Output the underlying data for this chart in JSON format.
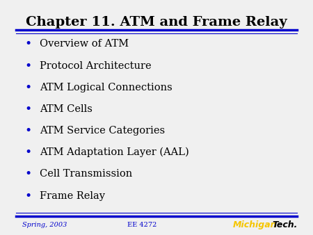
{
  "title": "Chapter 11. ATM and Frame Relay",
  "title_fontsize": 14,
  "title_color": "#000000",
  "bullet_items": [
    "Overview of ATM",
    "Protocol Architecture",
    "ATM Logical Connections",
    "ATM Cells",
    "ATM Service Categories",
    "ATM Adaptation Layer (AAL)",
    "Cell Transmission",
    "Frame Relay"
  ],
  "bullet_color": "#0000cc",
  "bullet_text_color": "#000000",
  "bullet_fontsize": 10.5,
  "footer_left": "Spring, 2003",
  "footer_center": "EE 4272",
  "footer_color": "#0000cc",
  "footer_fontsize": 7,
  "background_color": "#f0f0f0",
  "line_color_top": "#0000cc",
  "line_color_bottom": "#0000cc",
  "michigan_yellow": "#f5c500",
  "michigan_black": "#000000"
}
